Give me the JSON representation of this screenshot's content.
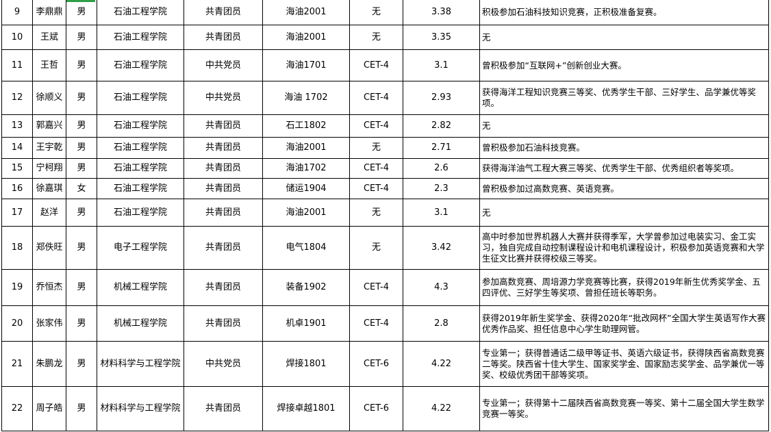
{
  "rows": [
    {
      "no": "9",
      "name": "李鼎鼎",
      "gender": "男",
      "college": "石油工程学院",
      "politics": "共青团员",
      "class": "海油2001",
      "cet": "无",
      "gpa": "3.38",
      "remarks": "积极参加石油科技知识竞赛，正积极准备复赛。"
    },
    {
      "no": "10",
      "name": "王斌",
      "gender": "男",
      "college": "石油工程学院",
      "politics": "共青团员",
      "class": "海油2001",
      "cet": "无",
      "gpa": "3.35",
      "remarks": "无"
    },
    {
      "no": "11",
      "name": "王哲",
      "gender": "男",
      "college": "石油工程学院",
      "politics": "中共党员",
      "class": "海油1701",
      "cet": "CET-4",
      "gpa": "3.1",
      "remarks": "曾积极参加“互联网+”创新创业大赛。"
    },
    {
      "no": "12",
      "name": "徐顺义",
      "gender": "男",
      "college": "石油工程学院",
      "politics": "中共党员",
      "class": "海油 1702",
      "cet": "CET-4",
      "gpa": "2.93",
      "remarks": "获得海洋工程知识竞赛三等奖、优秀学生干部、三好学生、品学兼优等奖项。"
    },
    {
      "no": "13",
      "name": "郭嘉兴",
      "gender": "男",
      "college": "石油工程学院",
      "politics": "共青团员",
      "class": "石工1802",
      "cet": "CET-4",
      "gpa": "2.82",
      "remarks": "无"
    },
    {
      "no": "14",
      "name": "王宇乾",
      "gender": "男",
      "college": "石油工程学院",
      "politics": "共青团员",
      "class": "海油2001",
      "cet": "无",
      "gpa": "2.71",
      "remarks": "曾积极参加石油科技竞赛。"
    },
    {
      "no": "15",
      "name": "宁柯翔",
      "gender": "男",
      "college": "石油工程学院",
      "politics": "共青团员",
      "class": "海油1702",
      "cet": "CET-4",
      "gpa": "2.6",
      "remarks": "获得海洋油气工程大赛三等奖、优秀学生干部、优秀组织者等奖项。"
    },
    {
      "no": "16",
      "name": "徐嘉琪",
      "gender": "女",
      "college": "石油工程学院",
      "politics": "共青团员",
      "class": "储运1904",
      "cet": "CET-4",
      "gpa": "2.3",
      "remarks": "曾积极参加过高数竞赛、英语竞赛。"
    },
    {
      "no": "17",
      "name": "赵洋",
      "gender": "男",
      "college": "石油工程学院",
      "politics": "共青团员",
      "class": "海油2001",
      "cet": "无",
      "gpa": "3.1",
      "remarks": "无"
    },
    {
      "no": "18",
      "name": "郑佚旺",
      "gender": "男",
      "college": "电子工程学院",
      "politics": "共青团员",
      "class": "电气1804",
      "cet": "无",
      "gpa": "3.42",
      "remarks": "高中时参加世界机器人大赛并获得季军，大学曾参加过电装实习、金工实习，独自完成自动控制课程设计和电机课程设计，积极参加英语竞赛和大学生征文比赛并获得校级三等奖。"
    },
    {
      "no": "19",
      "name": "乔恒杰",
      "gender": "男",
      "college": "机械工程学院",
      "politics": "共青团员",
      "class": "装备1902",
      "cet": "CET-4",
      "gpa": "4.3",
      "remarks": "参加高数竞赛、周培源力学竞赛等比赛，获得2019年新生优秀奖学金、五四评优、三好学生等奖项、曾担任班长等职务。"
    },
    {
      "no": "20",
      "name": "张家伟",
      "gender": "男",
      "college": "机械工程学院",
      "politics": "共青团员",
      "class": "机卓1901",
      "cet": "CET-4",
      "gpa": "2.8",
      "remarks": "获得2019年新生奖学金、获得2020年“批改网杯”全国大学生英语写作大赛优秀作品奖、担任信息中心学生助理网管。"
    },
    {
      "no": "21",
      "name": "朱鹏龙",
      "gender": "男",
      "college": "材料科学与工程学院",
      "politics": "中共党员",
      "class": "焊接1801",
      "cet": "CET-6",
      "gpa": "4.22",
      "remarks": "专业第一；获得普通话二级甲等证书、英语六级证书，获得陕西省高数竞赛二等奖。陕西省十佳大学生、国家奖学金、国家励志奖学金、品学兼优一等奖、校级优秀团干部等奖项。"
    },
    {
      "no": "22",
      "name": "周子皓",
      "gender": "男",
      "college": "材料科学与工程学院",
      "politics": "共青团员",
      "class": "焊接卓越1801",
      "cet": "CET-6",
      "gpa": "4.22",
      "remarks": "专业第一；获得第十二届陕西省高数竞赛一等奖、第十二届全国大学生数学竞赛一等奖。"
    }
  ],
  "selection_color": "#2e9e47"
}
